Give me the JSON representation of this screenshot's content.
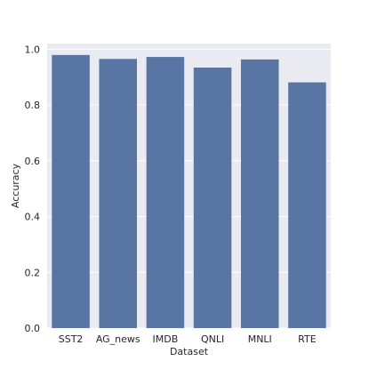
{
  "chart_data": {
    "type": "bar",
    "categories": [
      "SST2",
      "AG_news",
      "IMDB",
      "QNLI",
      "MNLI",
      "RTE"
    ],
    "values": [
      0.979,
      0.965,
      0.972,
      0.934,
      0.963,
      0.881
    ],
    "xlabel": "Dataset",
    "ylabel": "Accuracy",
    "ylim": [
      0,
      1.02
    ],
    "yticks": [
      "0.0",
      "0.2",
      "0.4",
      "0.6",
      "0.8",
      "1.0"
    ],
    "grid": true,
    "colors": {
      "bar": "#5875a4",
      "plot_background": "#eaeaf2",
      "grid": "#ffffff"
    }
  }
}
